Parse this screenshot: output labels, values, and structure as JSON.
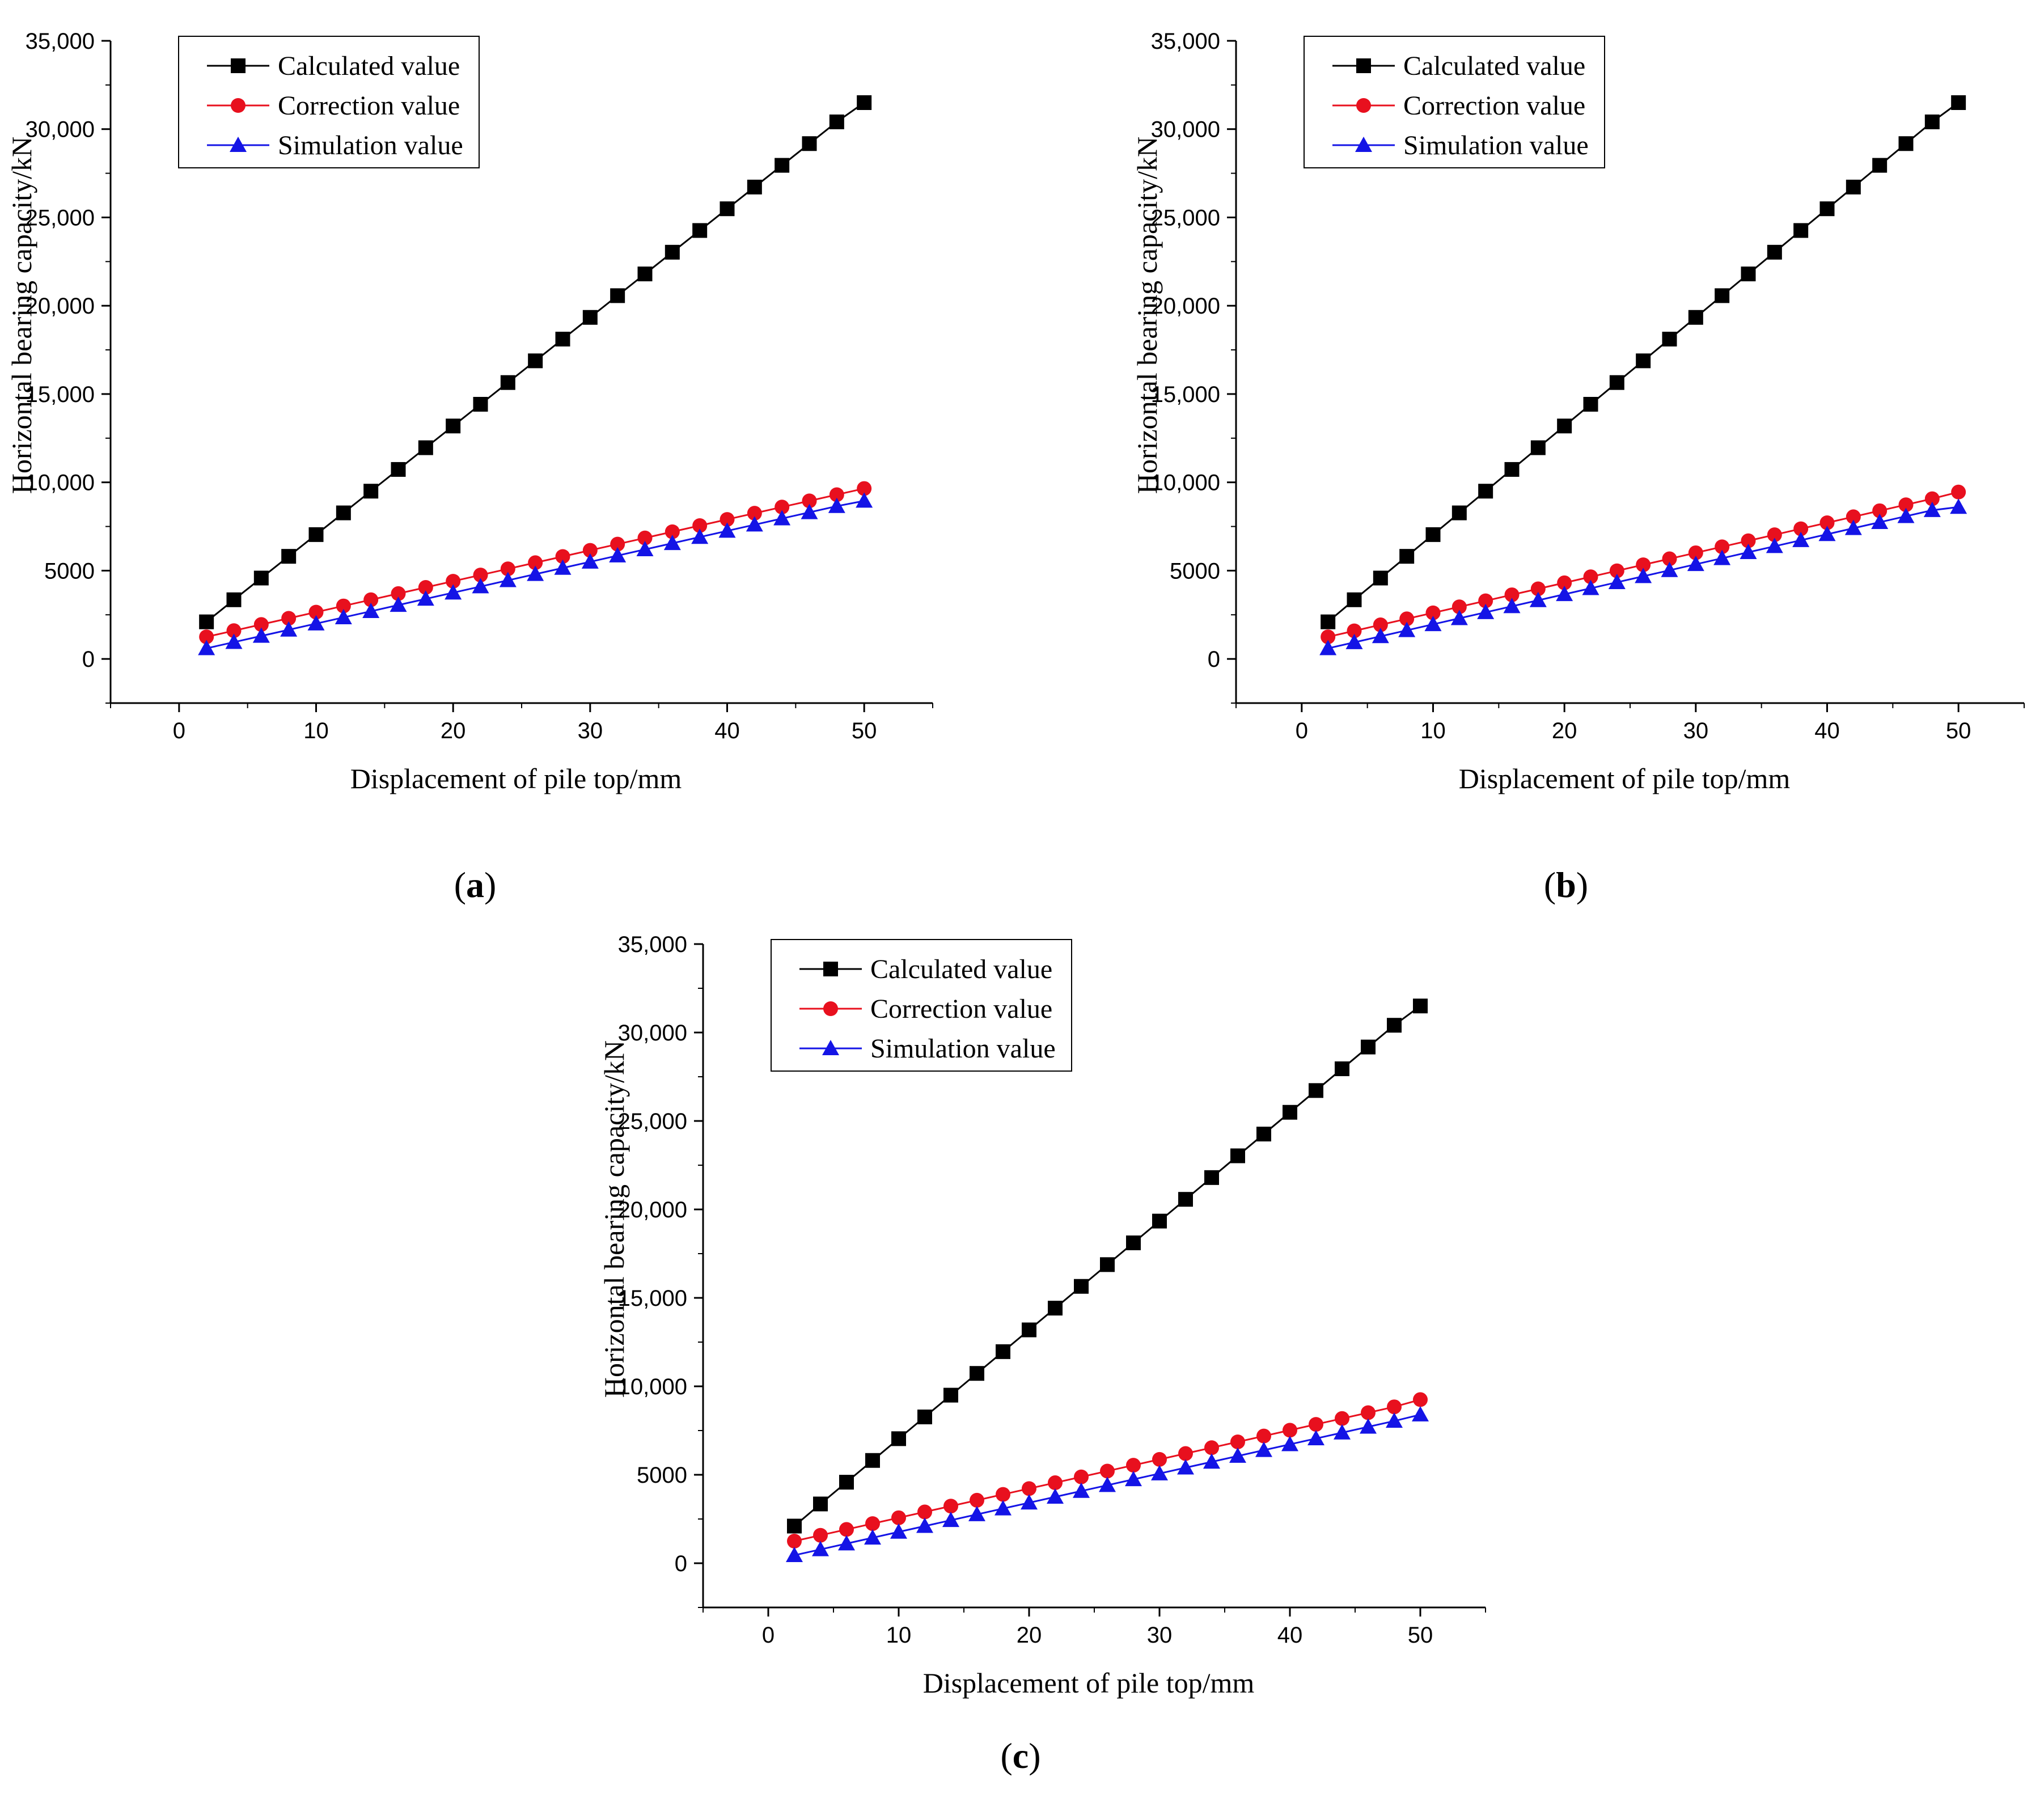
{
  "figure": {
    "panel_labels": [
      "a",
      "b",
      "c"
    ]
  },
  "colors": {
    "calculated": "#000000",
    "correction": "#e8101e",
    "simulation": "#1414e6",
    "axis": "#000000"
  },
  "chart_data": [
    {
      "type": "line",
      "panel": "a",
      "title": "",
      "xlabel": "Displacement of pile top/mm",
      "ylabel": "Horizontal bearing capacity/kN",
      "xlim": [
        -5,
        55
      ],
      "ylim": [
        -2500,
        35000
      ],
      "xticks": [
        0,
        10,
        20,
        30,
        40,
        50
      ],
      "xtick_labels": [
        "0",
        "10",
        "20",
        "30",
        "40",
        "50"
      ],
      "yticks": [
        0,
        5000,
        10000,
        15000,
        20000,
        25000,
        30000,
        35000
      ],
      "ytick_labels": [
        "0",
        "5000",
        "10,000",
        "15,000",
        "20,000",
        "25,000",
        "30,000",
        "35,000"
      ],
      "legend_position": "top-left",
      "x": [
        2,
        4,
        6,
        8,
        10,
        12,
        14,
        16,
        18,
        20,
        22,
        24,
        26,
        28,
        30,
        32,
        34,
        36,
        38,
        40,
        42,
        44,
        46,
        48,
        50
      ],
      "series": [
        {
          "name": "Calculated value",
          "marker": "square",
          "color_key": "calculated",
          "values": [
            2100,
            3350,
            4580,
            5810,
            7040,
            8270,
            9500,
            10730,
            11960,
            13190,
            14420,
            15650,
            16880,
            18110,
            19340,
            20570,
            21800,
            23030,
            24260,
            25490,
            26720,
            27950,
            29180,
            30410,
            31500
          ]
        },
        {
          "name": "Correction value",
          "marker": "circle",
          "color_key": "correction",
          "values": [
            1250,
            1600,
            1950,
            2300,
            2650,
            3000,
            3350,
            3700,
            4050,
            4400,
            4750,
            5100,
            5450,
            5800,
            6150,
            6500,
            6850,
            7200,
            7550,
            7900,
            8250,
            8600,
            8950,
            9300,
            9650
          ]
        },
        {
          "name": "Simulation value",
          "marker": "triangle",
          "color_key": "simulation",
          "values": [
            600,
            950,
            1300,
            1650,
            2000,
            2350,
            2700,
            3050,
            3400,
            3750,
            4100,
            4450,
            4800,
            5150,
            5500,
            5850,
            6200,
            6550,
            6900,
            7250,
            7600,
            7950,
            8300,
            8650,
            8950
          ]
        }
      ]
    },
    {
      "type": "line",
      "panel": "b",
      "title": "",
      "xlabel": "Displacement of pile top/mm",
      "ylabel": "Horizontal bearing capacity/kN",
      "xlim": [
        -5,
        55
      ],
      "ylim": [
        -2500,
        35000
      ],
      "xticks": [
        0,
        10,
        20,
        30,
        40,
        50
      ],
      "xtick_labels": [
        "0",
        "10",
        "20",
        "30",
        "40",
        "50"
      ],
      "yticks": [
        0,
        5000,
        10000,
        15000,
        20000,
        25000,
        30000,
        35000
      ],
      "ytick_labels": [
        "0",
        "5000",
        "10,000",
        "15,000",
        "20,000",
        "25,000",
        "30,000",
        "35,000"
      ],
      "legend_position": "top-left",
      "x": [
        2,
        4,
        6,
        8,
        10,
        12,
        14,
        16,
        18,
        20,
        22,
        24,
        26,
        28,
        30,
        32,
        34,
        36,
        38,
        40,
        42,
        44,
        46,
        48,
        50
      ],
      "series": [
        {
          "name": "Calculated value",
          "marker": "square",
          "color_key": "calculated",
          "values": [
            2100,
            3350,
            4580,
            5810,
            7040,
            8270,
            9500,
            10730,
            11960,
            13190,
            14420,
            15650,
            16880,
            18110,
            19340,
            20570,
            21800,
            23030,
            24260,
            25490,
            26720,
            27950,
            29180,
            30410,
            31500
          ]
        },
        {
          "name": "Correction value",
          "marker": "circle",
          "color_key": "correction",
          "values": [
            1250,
            1590,
            1930,
            2270,
            2610,
            2950,
            3290,
            3630,
            3970,
            4310,
            4650,
            4990,
            5330,
            5670,
            6010,
            6350,
            6690,
            7030,
            7370,
            7710,
            8050,
            8390,
            8730,
            9070,
            9450
          ]
        },
        {
          "name": "Simulation value",
          "marker": "triangle",
          "color_key": "simulation",
          "values": [
            600,
            940,
            1280,
            1620,
            1960,
            2300,
            2640,
            2980,
            3320,
            3660,
            4000,
            4340,
            4680,
            5020,
            5360,
            5700,
            6040,
            6380,
            6720,
            7060,
            7400,
            7740,
            8080,
            8420,
            8600
          ]
        }
      ]
    },
    {
      "type": "line",
      "panel": "c",
      "title": "",
      "xlabel": "Displacement of pile top/mm",
      "ylabel": "Horizontal bearing capacity/kN",
      "xlim": [
        -5,
        55
      ],
      "ylim": [
        -2500,
        35000
      ],
      "xticks": [
        0,
        10,
        20,
        30,
        40,
        50
      ],
      "xtick_labels": [
        "0",
        "10",
        "20",
        "30",
        "40",
        "50"
      ],
      "yticks": [
        0,
        5000,
        10000,
        15000,
        20000,
        25000,
        30000,
        35000
      ],
      "ytick_labels": [
        "0",
        "5000",
        "10,000",
        "15,000",
        "20,000",
        "25,000",
        "30,000",
        "35,000"
      ],
      "legend_position": "top-left",
      "x": [
        2,
        4,
        6,
        8,
        10,
        12,
        14,
        16,
        18,
        20,
        22,
        24,
        26,
        28,
        30,
        32,
        34,
        36,
        38,
        40,
        42,
        44,
        46,
        48,
        50
      ],
      "series": [
        {
          "name": "Calculated value",
          "marker": "square",
          "color_key": "calculated",
          "values": [
            2100,
            3350,
            4580,
            5810,
            7040,
            8270,
            9500,
            10730,
            11960,
            13190,
            14420,
            15650,
            16880,
            18110,
            19340,
            20570,
            21800,
            23030,
            24260,
            25490,
            26720,
            27950,
            29180,
            30410,
            31500
          ]
        },
        {
          "name": "Correction value",
          "marker": "circle",
          "color_key": "correction",
          "values": [
            1250,
            1580,
            1910,
            2240,
            2570,
            2900,
            3230,
            3560,
            3890,
            4220,
            4550,
            4880,
            5210,
            5540,
            5870,
            6200,
            6530,
            6860,
            7190,
            7520,
            7850,
            8180,
            8510,
            8840,
            9250
          ]
        },
        {
          "name": "Simulation value",
          "marker": "triangle",
          "color_key": "simulation",
          "values": [
            450,
            780,
            1110,
            1440,
            1770,
            2100,
            2430,
            2760,
            3090,
            3420,
            3750,
            4080,
            4410,
            4740,
            5070,
            5400,
            5730,
            6060,
            6390,
            6720,
            7050,
            7380,
            7710,
            8040,
            8400
          ]
        }
      ]
    }
  ]
}
